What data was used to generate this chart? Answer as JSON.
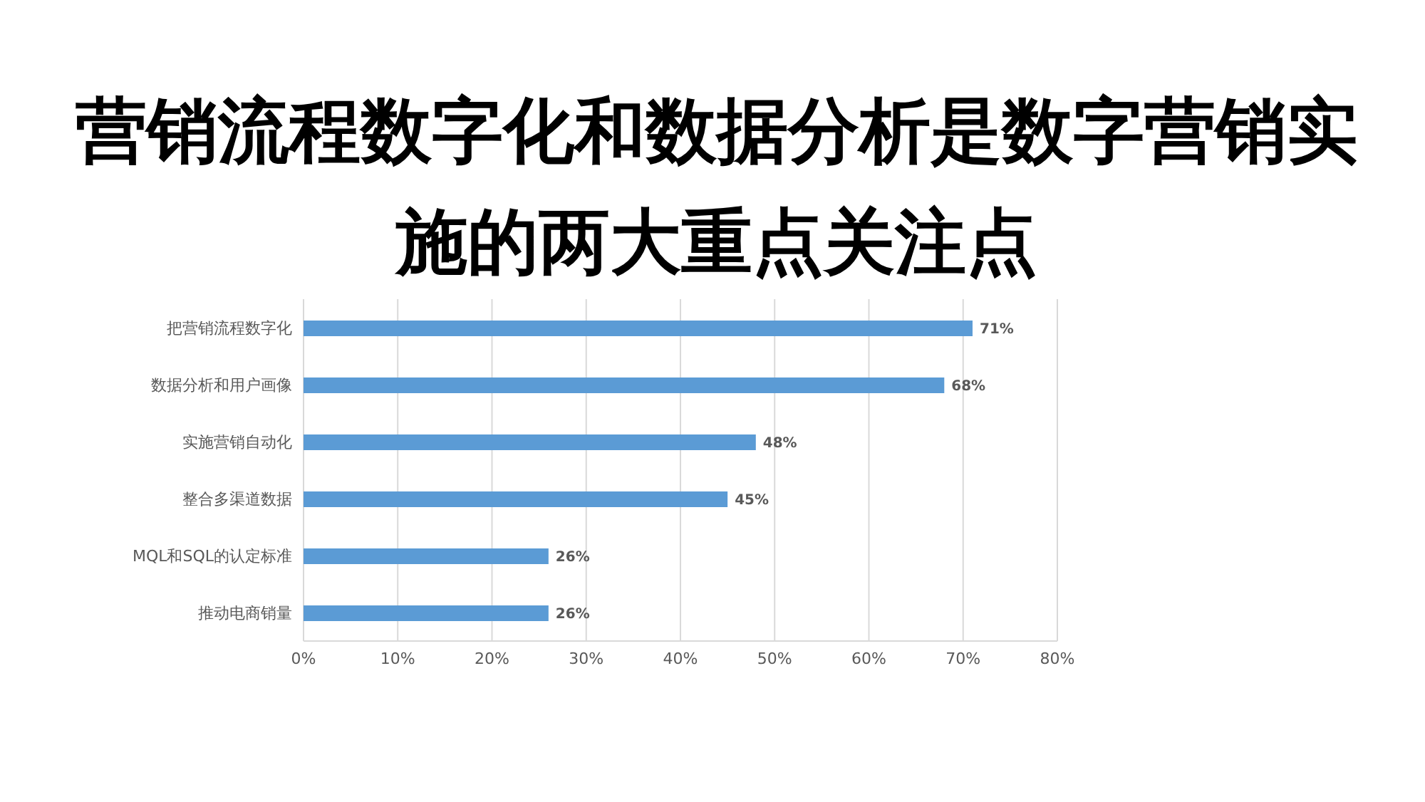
{
  "chart_data": {
    "type": "bar",
    "title": "营销流程数字化和数据分析是数字营销实施的两大重点关注点",
    "orientation": "horizontal",
    "categories": [
      "把营销流程数字化",
      "数据分析和用户画像",
      "实施营销自动化",
      "整合多渠道数据",
      "MQL和SQL的认定标准",
      "推动电商销量"
    ],
    "values": [
      71,
      68,
      48,
      45,
      26,
      26
    ],
    "value_labels": [
      "71%",
      "68%",
      "48%",
      "45%",
      "26%",
      "26%"
    ],
    "color": "#5b9bd5",
    "xlim": [
      0,
      80
    ],
    "xticks": [
      {
        "value": 0,
        "label": "0%"
      },
      {
        "value": 10,
        "label": "10%"
      },
      {
        "value": 20,
        "label": "20%"
      },
      {
        "value": 30,
        "label": "30%"
      },
      {
        "value": 40,
        "label": "40%"
      },
      {
        "value": 50,
        "label": "50%"
      },
      {
        "value": 60,
        "label": "60%"
      },
      {
        "value": 70,
        "label": "70%"
      },
      {
        "value": 80,
        "label": "80%"
      }
    ],
    "grid": "x"
  }
}
